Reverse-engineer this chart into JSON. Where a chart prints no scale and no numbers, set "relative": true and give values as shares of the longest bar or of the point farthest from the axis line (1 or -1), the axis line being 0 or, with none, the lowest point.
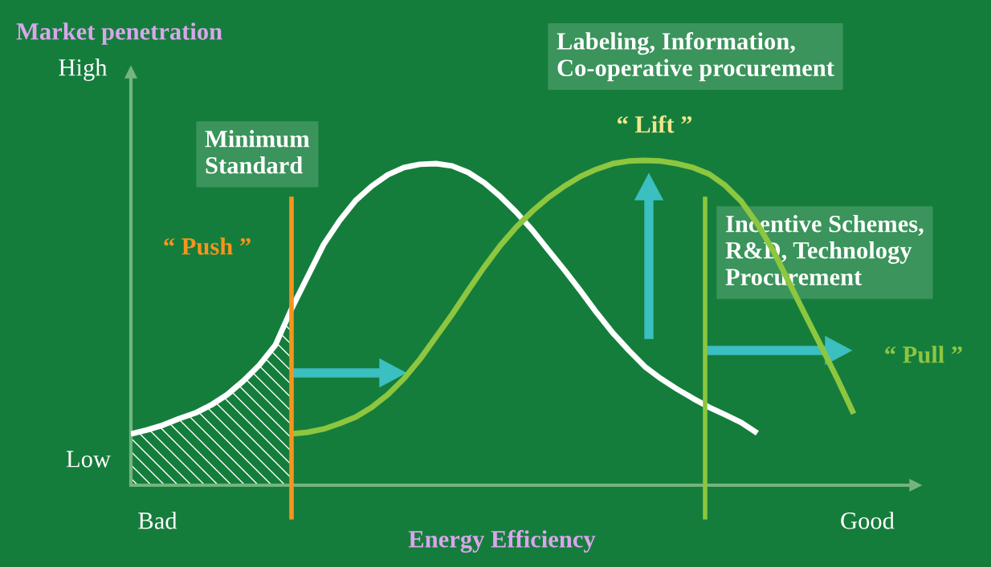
{
  "chart_data": {
    "type": "line",
    "relative": true,
    "categories": [
      null,
      null,
      null,
      null,
      null,
      null,
      null,
      null,
      null,
      null,
      null,
      null,
      null,
      null,
      null,
      null,
      null,
      null,
      null,
      null,
      null,
      null,
      null,
      null,
      null,
      null,
      null,
      null,
      null,
      null,
      null,
      null,
      null,
      null,
      null,
      null,
      null,
      null,
      null,
      null,
      null,
      null,
      null,
      null,
      null,
      null
    ],
    "tick_labels": false,
    "grid": false,
    "legend": false,
    "xlabel": "Energy Efficiency",
    "ylabel": "Market penetration",
    "series": [
      {
        "color": "#ffffff",
        "values": [
          0.158,
          0.17,
          0.185,
          0.205,
          0.222,
          0.247,
          0.279,
          0.321,
          0.37,
          0.432,
          0.543,
          0.642,
          0.741,
          0.815,
          0.877,
          0.921,
          0.956,
          0.978,
          0.988,
          0.99,
          0.983,
          0.963,
          0.931,
          0.889,
          0.84,
          0.785,
          0.723,
          0.662,
          0.598,
          0.531,
          0.469,
          0.415,
          0.365,
          0.328,
          0.296,
          0.267,
          0.24,
          0.217,
          0.193,
          0.16,
          null,
          null,
          null,
          null,
          null,
          null
        ]
      },
      {
        "color": "#8dc63f",
        "values": [
          null,
          null,
          null,
          null,
          null,
          null,
          null,
          null,
          null,
          null,
          0.158,
          0.163,
          0.173,
          0.19,
          0.21,
          0.24,
          0.279,
          0.328,
          0.388,
          0.457,
          0.526,
          0.6,
          0.672,
          0.738,
          0.795,
          0.844,
          0.886,
          0.921,
          0.951,
          0.973,
          0.99,
          0.998,
          1.0,
          0.998,
          0.99,
          0.978,
          0.958,
          0.923,
          0.874,
          0.805,
          0.721,
          0.622,
          0.523,
          0.425,
          0.326,
          0.22
        ]
      }
    ],
    "annotations": [
      "High",
      "Low",
      "Bad",
      "Good",
      "“ Push ”",
      "“ Lift ”",
      "“ Pull ”",
      "Labeling, Information,\nCo-operative procurement",
      "Minimum\nStandard",
      "Incentive Schemes,\nR&D, Technology\nProcurement"
    ]
  }
}
